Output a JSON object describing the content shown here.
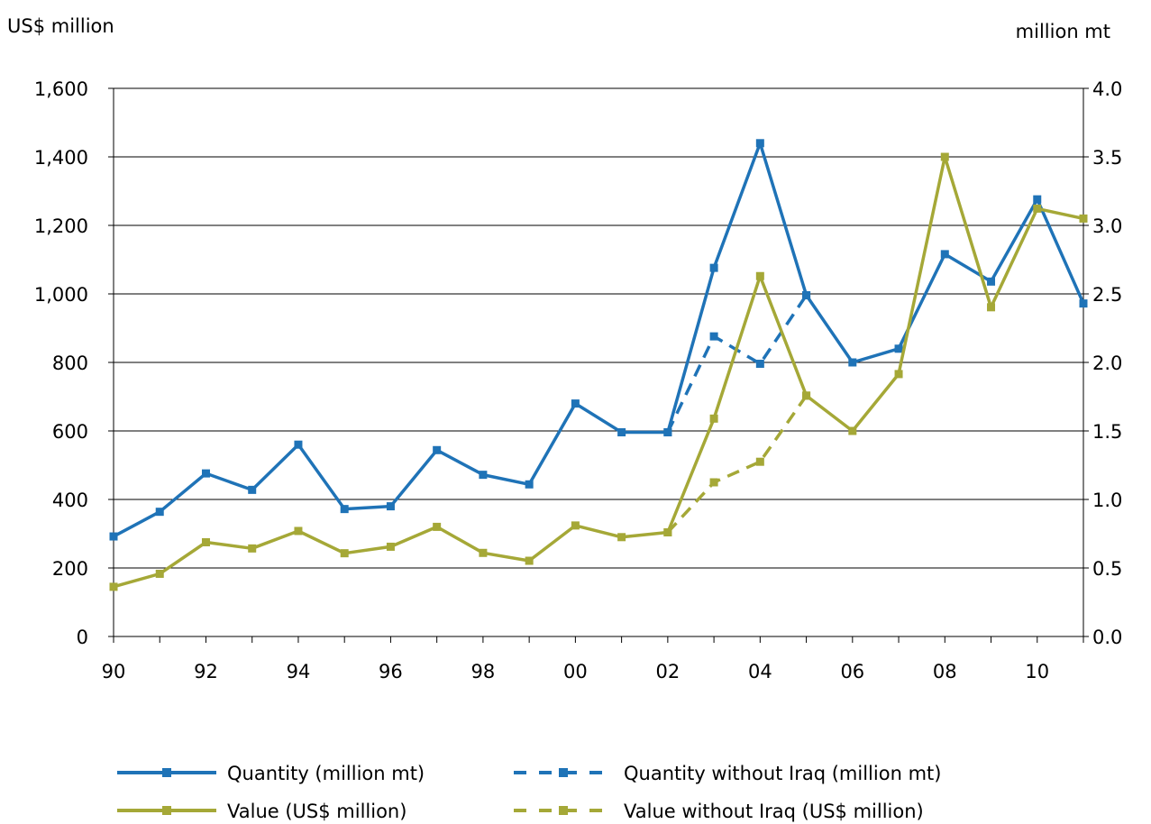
{
  "chart_data": {
    "type": "line",
    "title": "",
    "left_axis": {
      "label": "US$ million",
      "ylim": [
        0,
        1600
      ],
      "ticks": [
        0,
        200,
        400,
        600,
        800,
        1000,
        1200,
        1400,
        1600
      ],
      "tick_labels": [
        "0",
        "200",
        "400",
        "600",
        "800",
        "1,000",
        "1,200",
        "1,400",
        "1,600"
      ]
    },
    "right_axis": {
      "label": "million mt",
      "ylim": [
        0,
        4
      ],
      "ticks": [
        0,
        0.5,
        1,
        1.5,
        2,
        2.5,
        3,
        3.5,
        4
      ],
      "tick_labels": [
        "0.0",
        "0.5",
        "1.0",
        "1.5",
        "2.0",
        "2.5",
        "3.0",
        "3.5",
        "4.0"
      ]
    },
    "x": [
      "1990",
      "1991",
      "1992",
      "1993",
      "1994",
      "1995",
      "1996",
      "1997",
      "1998",
      "1999",
      "2000",
      "2001",
      "2002",
      "2003",
      "2004",
      "2005",
      "2006",
      "2007",
      "2008",
      "2009",
      "2010",
      "2011"
    ],
    "x_tick_labels": [
      {
        "x": "1990",
        "label": "90"
      },
      {
        "x": "1992",
        "label": "92"
      },
      {
        "x": "1994",
        "label": "94"
      },
      {
        "x": "1996",
        "label": "96"
      },
      {
        "x": "1998",
        "label": "98"
      },
      {
        "x": "2000",
        "label": "00"
      },
      {
        "x": "2002",
        "label": "02"
      },
      {
        "x": "2004",
        "label": "04"
      },
      {
        "x": "2006",
        "label": "06"
      },
      {
        "x": "2008",
        "label": "08"
      },
      {
        "x": "2010",
        "label": "10"
      }
    ],
    "grid": true,
    "legend_position": "bottom",
    "series": [
      {
        "name": "Quantity (million mt)",
        "axis": "right",
        "color": "#1f73b7",
        "style": "solid",
        "values": [
          0.73,
          0.91,
          1.19,
          1.07,
          1.4,
          0.93,
          0.95,
          1.36,
          1.18,
          1.11,
          1.7,
          1.49,
          1.49,
          2.69,
          3.6,
          2.49,
          2.0,
          2.1,
          2.79,
          2.59,
          3.19,
          2.43
        ]
      },
      {
        "name": "Quantity without Iraq (million mt)",
        "axis": "right",
        "color": "#1f73b7",
        "style": "dashed",
        "values": [
          null,
          null,
          null,
          null,
          null,
          null,
          null,
          null,
          null,
          null,
          null,
          null,
          1.49,
          2.19,
          1.99,
          2.49,
          null,
          null,
          null,
          null,
          null,
          null
        ]
      },
      {
        "name": "Value (US$ million)",
        "axis": "left",
        "color": "#a5a837",
        "style": "solid",
        "values": [
          145,
          183,
          275,
          257,
          308,
          243,
          262,
          320,
          244,
          221,
          324,
          290,
          304,
          636,
          1052,
          703,
          600,
          766,
          1400,
          961,
          1249,
          1220
        ]
      },
      {
        "name": "Value without Iraq (US$ million)",
        "axis": "left",
        "color": "#a5a837",
        "style": "dashed",
        "values": [
          null,
          null,
          null,
          null,
          null,
          null,
          null,
          null,
          null,
          null,
          null,
          null,
          304,
          450,
          510,
          703,
          null,
          null,
          null,
          null,
          null,
          null
        ]
      }
    ]
  }
}
